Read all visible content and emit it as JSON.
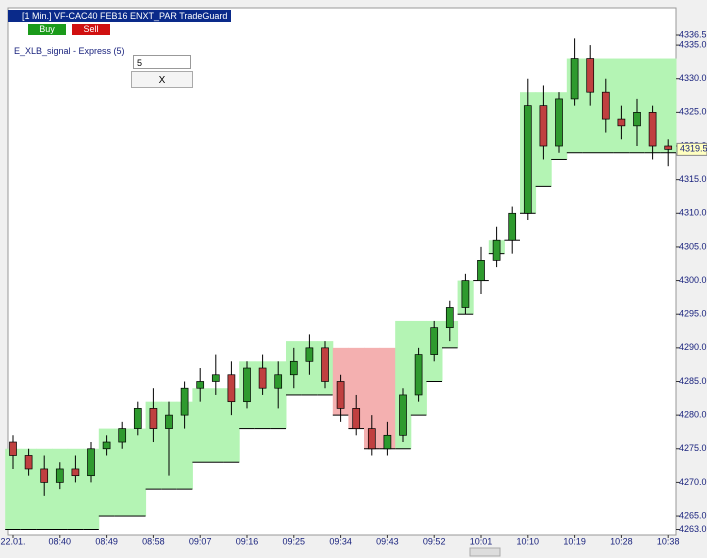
{
  "ui": {
    "header": "[1 Min.] VF-CAC40 FEB16    ENXT_PAR TradeGuard",
    "buy": "Buy",
    "sell": "Sell",
    "indicator": "E_XLB_signal - Express  (5)",
    "input": "5",
    "close_button": "X"
  },
  "chart_data": {
    "type": "candlestick",
    "categories": [
      "22.01.",
      null,
      null,
      "08:40",
      null,
      null,
      "08:49",
      null,
      null,
      "08:58",
      null,
      null,
      "09:07",
      null,
      null,
      "09:16",
      null,
      null,
      "09:25",
      null,
      null,
      "09:34",
      null,
      null,
      "09:43",
      null,
      null,
      "09:52",
      null,
      null,
      "10:01",
      null,
      null,
      "10:10",
      null,
      null,
      "10:19",
      null,
      null,
      "10:28",
      null,
      null,
      "10:38"
    ],
    "open": [
      4276,
      4274,
      4272,
      4270,
      4272,
      4271,
      4275,
      4276,
      4278,
      4281,
      4278,
      4280,
      4284,
      4285,
      4286,
      4282,
      4287,
      4284,
      4286,
      4288,
      4290,
      4285,
      4281,
      4278,
      4275,
      4277,
      4283,
      4289,
      4293,
      4296,
      4300,
      4303,
      4306,
      4310,
      4326,
      4320,
      4327,
      4333,
      4328,
      4324,
      4323,
      4325,
      4320
    ],
    "high": [
      4277,
      4275,
      4274,
      4273,
      4274,
      4276,
      4277,
      4279,
      4282,
      4284,
      4282,
      4285,
      4287,
      4289,
      4288,
      4288,
      4289,
      4288,
      4290,
      4292,
      4291,
      4286,
      4283,
      4280,
      4279,
      4284,
      4290,
      4294,
      4297,
      4301,
      4305,
      4308,
      4311,
      4330,
      4329,
      4328,
      4336,
      4335,
      4330,
      4326,
      4327,
      4326,
      4321
    ],
    "low": [
      4272,
      4271,
      4268,
      4269,
      4270,
      4270,
      4274,
      4275,
      4277,
      4276,
      4271,
      4278,
      4282,
      4283,
      4280,
      4281,
      4283,
      4281,
      4284,
      4286,
      4284,
      4279,
      4277,
      4274,
      4274,
      4276,
      4282,
      4288,
      4291,
      4295,
      4298,
      4302,
      4304,
      4309,
      4318,
      4319,
      4326,
      4326,
      4322,
      4321,
      4320,
      4318,
      4317
    ],
    "close": [
      4274,
      4272,
      4270,
      4272,
      4271,
      4275,
      4276,
      4278,
      4281,
      4278,
      4280,
      4284,
      4285,
      4286,
      4282,
      4287,
      4284,
      4286,
      4288,
      4290,
      4285,
      4281,
      4278,
      4275,
      4277,
      4283,
      4289,
      4293,
      4296,
      4300,
      4303,
      4306,
      4310,
      4326,
      4320,
      4327,
      4333,
      4328,
      4324,
      4323,
      4325,
      4320,
      4319.5
    ],
    "band": {
      "upper": [
        4275,
        4275,
        4275,
        4275,
        4275,
        4275,
        4278,
        4278,
        4278,
        4282,
        4282,
        4282,
        4284,
        4284,
        4284,
        4288,
        4288,
        4288,
        4291,
        4291,
        4291,
        4290,
        4290,
        4290,
        4290,
        4294,
        4294,
        4294,
        4294,
        4300,
        4300,
        4306,
        4306,
        4328,
        4328,
        4328,
        4333,
        4333,
        4333,
        4333,
        4333,
        4333,
        4333
      ],
      "lower": [
        4263,
        4263,
        4263,
        4263,
        4263,
        4263,
        4265,
        4265,
        4265,
        4269,
        4269,
        4269,
        4273,
        4273,
        4273,
        4278,
        4278,
        4278,
        4283,
        4283,
        4283,
        4280,
        4278,
        4275,
        4275,
        4275,
        4280,
        4285,
        4290,
        4295,
        4300,
        4304,
        4306,
        4310,
        4314,
        4318,
        4319,
        4319,
        4319,
        4319,
        4319,
        4319,
        4319
      ],
      "colors": [
        "#b4f4b4",
        "#b4f4b4",
        "#b4f4b4",
        "#b4f4b4",
        "#b4f4b4",
        "#b4f4b4",
        "#b4f4b4",
        "#b4f4b4",
        "#b4f4b4",
        "#b4f4b4",
        "#b4f4b4",
        "#b4f4b4",
        "#b4f4b4",
        "#b4f4b4",
        "#b4f4b4",
        "#b4f4b4",
        "#b4f4b4",
        "#b4f4b4",
        "#b4f4b4",
        "#b4f4b4",
        "#b4f4b4",
        "#f4b0b0",
        "#f4b0b0",
        "#f4b0b0",
        "#f4b0b0",
        "#b4f4b4",
        "#b4f4b4",
        "#b4f4b4",
        "#b4f4b4",
        "#b4f4b4",
        "#b4f4b4",
        "#b4f4b4",
        "#b4f4b4",
        "#b4f4b4",
        "#b4f4b4",
        "#b4f4b4",
        "#b4f4b4",
        "#b4f4b4",
        "#b4f4b4",
        "#b4f4b4",
        "#b4f4b4",
        "#b4f4b4",
        "#b4f4b4"
      ]
    },
    "up_color": "#2e9a2e",
    "down_color": "#c04040",
    "ylim": [
      4263,
      4336.5
    ],
    "yticks": [
      {
        "value": 4263,
        "label": "4263.0"
      },
      {
        "value": 4265,
        "label": "4265.0"
      },
      {
        "value": 4270,
        "label": "4270.0"
      },
      {
        "value": 4275,
        "label": "4275.0"
      },
      {
        "value": 4280,
        "label": "4280.0"
      },
      {
        "value": 4285,
        "label": "4285.0"
      },
      {
        "value": 4290,
        "label": "4290.0"
      },
      {
        "value": 4295,
        "label": "4295.0"
      },
      {
        "value": 4300,
        "label": "4300.0"
      },
      {
        "value": 4305,
        "label": "4305.0"
      },
      {
        "value": 4310,
        "label": "4310.0"
      },
      {
        "value": 4315,
        "label": "4315.0"
      },
      {
        "value": 4320,
        "label": "4320.0"
      },
      {
        "value": 4325,
        "label": "4325.0"
      },
      {
        "value": 4330,
        "label": "4330.0"
      },
      {
        "value": 4335,
        "label": "4335.0"
      },
      4336.5
    ]
  }
}
